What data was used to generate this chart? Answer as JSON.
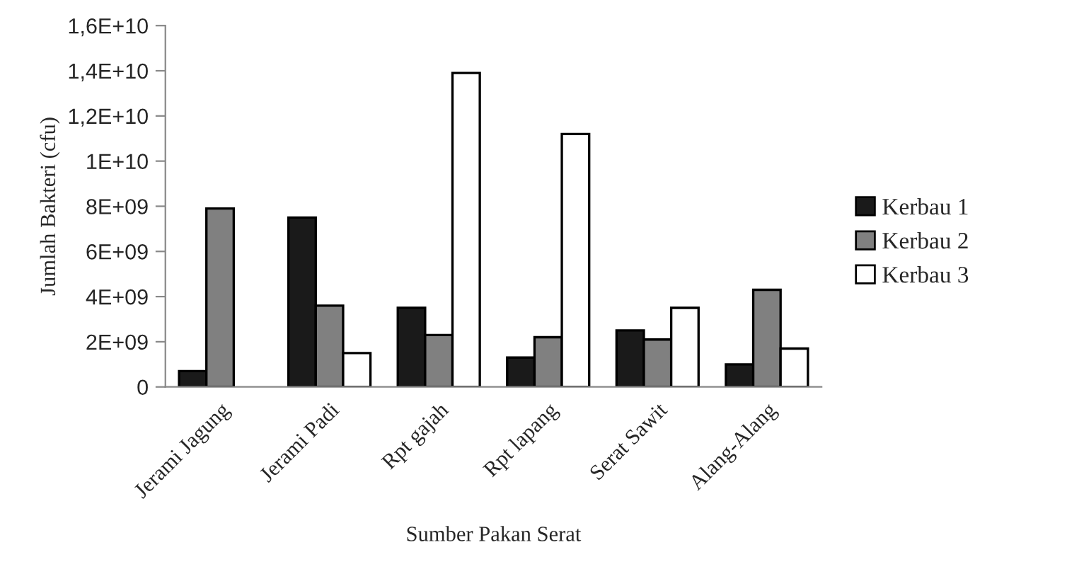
{
  "chart_data": {
    "type": "bar",
    "xlabel": "Sumber Pakan Serat",
    "ylabel": "Jumlah Bakteri (cfu)",
    "categories": [
      "Jerami Jagung",
      "Jerami Padi",
      "Rpt gajah",
      "Rpt lapang",
      "Serat Sawit",
      "Alang-Alang"
    ],
    "series": [
      {
        "name": "Kerbau 1",
        "color": "#1a1a1a",
        "values": [
          700000000.0,
          7500000000.0,
          3500000000.0,
          1300000000.0,
          2500000000.0,
          1000000000.0
        ]
      },
      {
        "name": "Kerbau 2",
        "color": "#808080",
        "values": [
          7900000000.0,
          3600000000.0,
          2300000000.0,
          2200000000.0,
          2100000000.0,
          4300000000.0
        ]
      },
      {
        "name": "Kerbau 3",
        "color": "#ffffff",
        "values": [
          null,
          1500000000.0,
          13900000000.0,
          11200000000.0,
          3500000000.0,
          1700000000.0
        ]
      }
    ],
    "ylim": [
      0,
      16000000000.0
    ],
    "yticks": [
      0,
      {
        "value": 2000000000.0,
        "label": "2E+09"
      },
      {
        "value": 4000000000.0,
        "label": "4E+09"
      },
      {
        "value": 6000000000.0,
        "label": "6E+09"
      },
      {
        "value": 8000000000.0,
        "label": "8E+09"
      },
      {
        "value": 10000000000.0,
        "label": "1E+10"
      },
      {
        "value": 12000000000.0,
        "label": "1,2E+10"
      },
      {
        "value": 14000000000.0,
        "label": "1,4E+10"
      },
      {
        "value": 16000000000.0,
        "label": "1,6E+10"
      }
    ],
    "grid": false,
    "legend": "right"
  }
}
